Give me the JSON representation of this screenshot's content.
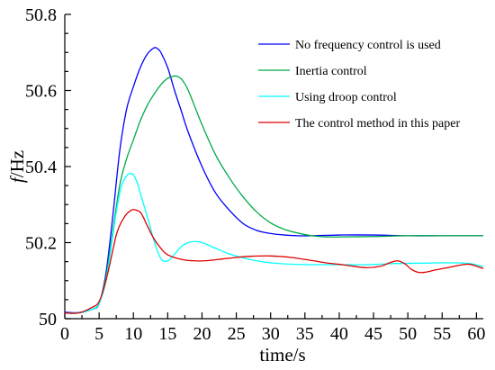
{
  "chart_data": {
    "type": "line",
    "title": "",
    "xlabel": "time/s",
    "ylabel_italic": "f",
    "ylabel_unit": "/Hz",
    "xlim": [
      0,
      61
    ],
    "ylim": [
      50,
      50.8
    ],
    "grid": false,
    "legend_position": "top-right",
    "x_ticks": [
      "0",
      "5",
      "10",
      "15",
      "20",
      "25",
      "30",
      "35",
      "40",
      "45",
      "50",
      "55",
      "60"
    ],
    "y_ticks": [
      "50",
      "50.2",
      "50.4",
      "50.6",
      "50.8"
    ],
    "series": [
      {
        "name": "No frequency control is used",
        "color": "#0000ff",
        "x": [
          0,
          2,
          4,
          5,
          6,
          7,
          8,
          9,
          10,
          11,
          12,
          13,
          13.5,
          14,
          15,
          16,
          17,
          18,
          20,
          22,
          24,
          26,
          28,
          30,
          32,
          34,
          36,
          40,
          45,
          50,
          55,
          61
        ],
        "y": [
          50.017,
          50.016,
          50.025,
          50.04,
          50.12,
          50.27,
          50.44,
          50.55,
          50.61,
          50.66,
          50.695,
          50.712,
          50.71,
          50.7,
          50.66,
          50.6,
          50.545,
          50.49,
          50.4,
          50.33,
          50.285,
          50.25,
          50.232,
          50.224,
          50.22,
          50.218,
          50.218,
          50.22,
          50.22,
          50.218,
          50.218,
          50.218
        ]
      },
      {
        "name": "Inertia control",
        "color": "#00aa44",
        "x": [
          0,
          2,
          4,
          5,
          6,
          7,
          8,
          9,
          10,
          11,
          12,
          13,
          14,
          15,
          16,
          16.5,
          17,
          18,
          20,
          22,
          24,
          26,
          28,
          30,
          32,
          34,
          36,
          38,
          40,
          45,
          50,
          55,
          61
        ],
        "y": [
          50.015,
          50.015,
          50.025,
          50.04,
          50.11,
          50.23,
          50.35,
          50.42,
          50.47,
          50.52,
          50.56,
          50.59,
          50.615,
          50.632,
          50.638,
          50.636,
          50.63,
          50.6,
          50.51,
          50.43,
          50.37,
          50.32,
          50.28,
          50.252,
          50.235,
          50.225,
          50.218,
          50.215,
          50.215,
          50.216,
          50.218,
          50.218,
          50.218
        ]
      },
      {
        "name": "Using droop control",
        "color": "#00ffff",
        "x": [
          0,
          2,
          4,
          5,
          6,
          7,
          7.5,
          8,
          8.5,
          9,
          9.5,
          10,
          10.5,
          11,
          12,
          13,
          14,
          15,
          16,
          17,
          18,
          19,
          20,
          22,
          24,
          26,
          28,
          30,
          32,
          35,
          38,
          40,
          44,
          48,
          52,
          56,
          59,
          61
        ],
        "y": [
          50.015,
          50.015,
          50.025,
          50.04,
          50.1,
          50.22,
          50.28,
          50.33,
          50.36,
          50.375,
          50.382,
          50.378,
          50.36,
          50.33,
          50.27,
          50.205,
          50.158,
          50.152,
          50.17,
          50.19,
          50.2,
          50.203,
          50.2,
          50.185,
          50.17,
          50.16,
          50.152,
          50.147,
          50.144,
          50.142,
          50.142,
          50.142,
          50.142,
          50.145,
          50.146,
          50.147,
          50.145,
          50.137
        ]
      },
      {
        "name": "The control method in this paper",
        "color": "#dd0000",
        "x": [
          0,
          2,
          4,
          5,
          6,
          7,
          7.5,
          8,
          8.5,
          9,
          9.5,
          10,
          10.5,
          11,
          11.5,
          12,
          13,
          14,
          15,
          17,
          19,
          21,
          23,
          25,
          27,
          30,
          33,
          36,
          38,
          40,
          42,
          44,
          46,
          47.5,
          48.5,
          49.5,
          50.5,
          51.5,
          52.5,
          54,
          56,
          58,
          59,
          60,
          61
        ],
        "y": [
          50.015,
          50.015,
          50.03,
          50.045,
          50.1,
          50.18,
          50.22,
          50.245,
          50.262,
          50.275,
          50.283,
          50.287,
          50.285,
          50.28,
          50.265,
          50.245,
          50.21,
          50.185,
          50.168,
          50.156,
          50.152,
          50.153,
          50.157,
          50.161,
          50.164,
          50.165,
          50.161,
          50.153,
          50.147,
          50.143,
          50.138,
          50.134,
          50.138,
          50.148,
          50.152,
          50.145,
          50.13,
          50.122,
          50.122,
          50.128,
          50.135,
          50.142,
          50.143,
          50.138,
          50.132
        ]
      }
    ]
  }
}
